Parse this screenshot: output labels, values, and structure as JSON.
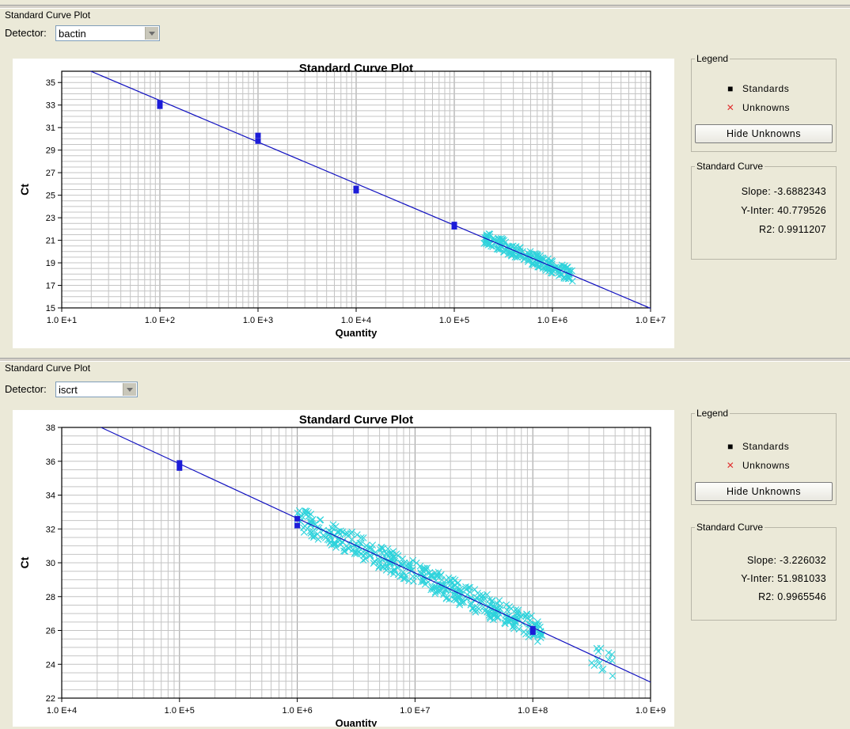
{
  "panels": [
    {
      "header": "Standard Curve Plot",
      "detector_label": "Detector:",
      "detector_value": "bactin",
      "legend": {
        "title": "Legend",
        "standards_label": "Standards",
        "unknowns_label": "Unknowns",
        "hide_button": "Hide Unknowns"
      },
      "standard_curve": {
        "title": "Standard Curve",
        "slope": "Slope: -3.6882343",
        "y_inter": "Y-Inter: 40.779526",
        "r2": "R2: 0.9911207"
      },
      "chart_data": {
        "type": "scatter",
        "title": "Standard Curve Plot",
        "xlabel": "Quantity",
        "ylabel": "Ct",
        "x_scale": "log",
        "xlim": [
          10,
          10000000
        ],
        "ylim": [
          15,
          36
        ],
        "x_tick_labels": [
          "1.0 E+1",
          "1.0 E+2",
          "1.0 E+3",
          "1.0 E+4",
          "1.0 E+5",
          "1.0 E+6",
          "1.0 E+7"
        ],
        "y_ticks": [
          15,
          17,
          19,
          21,
          23,
          25,
          27,
          29,
          31,
          33,
          35
        ],
        "grid": true,
        "fit": {
          "slope": -3.6882343,
          "intercept": 40.779526
        },
        "standards": [
          {
            "x": 100,
            "y": 33.2
          },
          {
            "x": 100,
            "y": 32.9
          },
          {
            "x": 1000,
            "y": 30.3
          },
          {
            "x": 1000,
            "y": 29.8
          },
          {
            "x": 10000,
            "y": 25.6
          },
          {
            "x": 10000,
            "y": 25.4
          },
          {
            "x": 100000,
            "y": 22.4
          },
          {
            "x": 100000,
            "y": 22.2
          }
        ],
        "unknowns_range": {
          "x": [
            200000,
            1600000
          ],
          "y_spread": 0.6
        },
        "colors": {
          "fit": "#1010c0",
          "standards": "#1c1cd8",
          "unknowns": "#2fd3dc"
        }
      }
    },
    {
      "header": "Standard Curve Plot",
      "detector_label": "Detector:",
      "detector_value": "iscrt",
      "legend": {
        "title": "Legend",
        "standards_label": "Standards",
        "unknowns_label": "Unknowns",
        "hide_button": "Hide Unknowns"
      },
      "standard_curve": {
        "title": "Standard Curve",
        "slope": "Slope: -3.226032",
        "y_inter": "Y-Inter: 51.981033",
        "r2": "R2: 0.9965546"
      },
      "chart_data": {
        "type": "scatter",
        "title": "Standard Curve Plot",
        "xlabel": "Quantity",
        "ylabel": "Ct",
        "x_scale": "log",
        "xlim": [
          10000,
          1000000000
        ],
        "ylim": [
          22,
          38
        ],
        "x_tick_labels": [
          "1.0 E+4",
          "1.0 E+5",
          "1.0 E+6",
          "1.0 E+7",
          "1.0 E+8",
          "1.0 E+9"
        ],
        "y_ticks": [
          22,
          24,
          26,
          28,
          30,
          32,
          34,
          36,
          38
        ],
        "grid": true,
        "fit": {
          "slope": -3.226032,
          "intercept": 51.981033
        },
        "standards": [
          {
            "x": 100000,
            "y": 35.9
          },
          {
            "x": 100000,
            "y": 35.6
          },
          {
            "x": 1000000,
            "y": 32.6
          },
          {
            "x": 1000000,
            "y": 32.2
          },
          {
            "x": 100000000,
            "y": 26.1
          },
          {
            "x": 100000000,
            "y": 25.9
          }
        ],
        "unknowns_range": {
          "x": [
            1000000,
            120000000
          ],
          "y_spread": 0.7
        },
        "unknowns_extra": {
          "x": [
            300000000,
            500000000
          ]
        },
        "colors": {
          "fit": "#1010c0",
          "standards": "#1c1cd8",
          "unknowns": "#2fd3dc"
        }
      }
    }
  ]
}
